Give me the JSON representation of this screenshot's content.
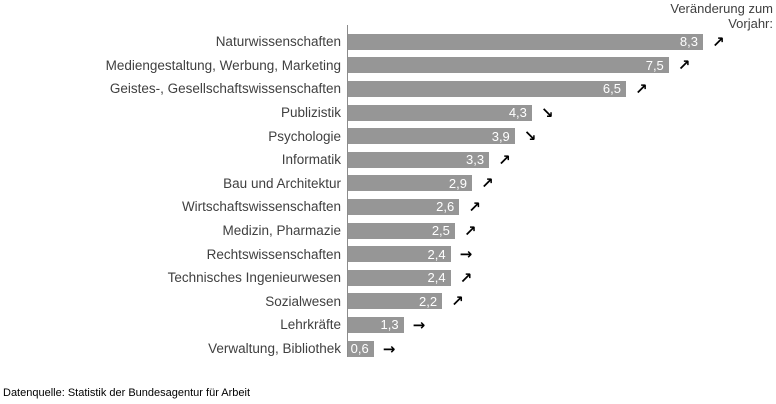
{
  "header": {
    "title": "Veränderung zum\nVorjahr:"
  },
  "footer": {
    "source": "Datenquelle: Statistik der Bundesagentur für Arbeit"
  },
  "icons": {
    "up": "↗",
    "down": "↘",
    "flat": "→"
  },
  "colors": {
    "bar": "#969696",
    "axis_line": "#8c8c8c",
    "category_text": "#404040",
    "value_text": "#ffffff",
    "trend_arrow": "#000000",
    "background": "#ffffff"
  },
  "chart_data": {
    "type": "bar",
    "orientation": "horizontal",
    "title": "",
    "legend_title": "Veränderung zum Vorjahr:",
    "source": "Datenquelle: Statistik der Bundesagentur für Arbeit",
    "categories": [
      "Naturwissenschaften",
      "Mediengestaltung, Werbung, Marketing",
      "Geistes-, Gesellschaftswissenschaften",
      "Publizistik",
      "Psychologie",
      "Informatik",
      "Bau und Architektur",
      "Wirtschaftswissenschaften",
      "Medizin, Pharmazie",
      "Rechtswissenschaften",
      "Technisches Ingenieurwesen",
      "Sozialwesen",
      "Lehrkräfte",
      "Verwaltung, Bibliothek"
    ],
    "values": [
      8.3,
      7.5,
      6.5,
      4.3,
      3.9,
      3.3,
      2.9,
      2.6,
      2.5,
      2.4,
      2.4,
      2.2,
      1.3,
      0.6
    ],
    "value_labels": [
      "8,3",
      "7,5",
      "6,5",
      "4,3",
      "3,9",
      "3,3",
      "2,9",
      "2,6",
      "2,5",
      "2,4",
      "2,4",
      "2,2",
      "1,3",
      "0,6"
    ],
    "trends": [
      "up",
      "up",
      "up",
      "down",
      "down",
      "up",
      "up",
      "up",
      "up",
      "flat",
      "up",
      "up",
      "flat",
      "flat"
    ],
    "xlim": [
      0,
      8.5
    ],
    "grid": false,
    "value_label_position": "inside-end",
    "legend_position": "top-right"
  }
}
